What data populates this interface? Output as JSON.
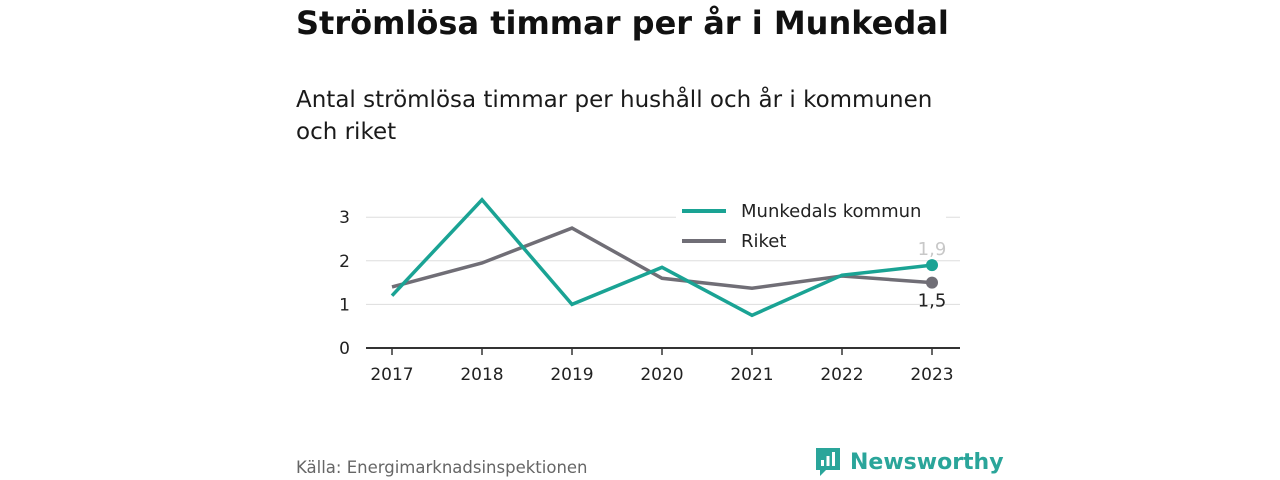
{
  "header": {
    "title": "Strömlösa timmar per år i Munkedal",
    "subtitle": "Antal strömlösa timmar per hushåll och år i kommunen och riket"
  },
  "footer": {
    "source": "Källa: Energimarknadsinspektionen",
    "brand": "Newsworthy",
    "brand_icon": "newsworthy-logo-icon"
  },
  "colors": {
    "munkedal": "#1aa394",
    "riket": "#706e76",
    "brand": "#2aa59a"
  },
  "chart_data": {
    "type": "line",
    "categories": [
      "2017",
      "2018",
      "2019",
      "2020",
      "2021",
      "2022",
      "2023"
    ],
    "series": [
      {
        "name": "Munkedals kommun",
        "values": [
          1.2,
          3.4,
          1.0,
          1.85,
          0.75,
          1.67,
          1.9
        ],
        "end_label": "1,9"
      },
      {
        "name": "Riket",
        "values": [
          1.4,
          1.95,
          2.75,
          1.6,
          1.37,
          1.65,
          1.5
        ],
        "end_label": "1,5"
      }
    ],
    "yticks": [
      "0",
      "1",
      "2",
      "3"
    ],
    "ylim": [
      0,
      3.5
    ],
    "grid": true,
    "legend_position": "top-right"
  }
}
